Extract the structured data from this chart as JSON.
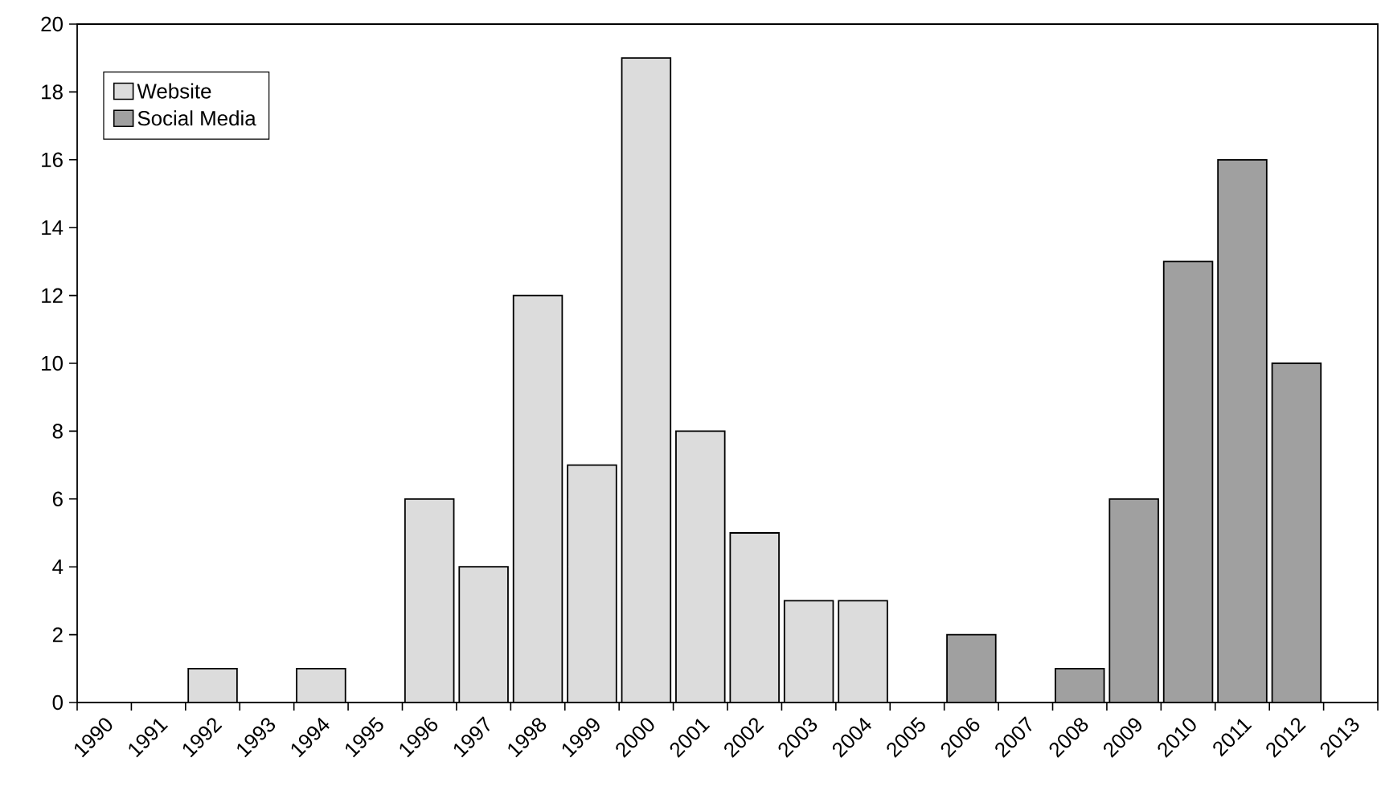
{
  "chart_data": {
    "type": "bar",
    "categories": [
      "1990",
      "1991",
      "1992",
      "1993",
      "1994",
      "1995",
      "1996",
      "1997",
      "1998",
      "1999",
      "2000",
      "2001",
      "2002",
      "2003",
      "2004",
      "2005",
      "2006",
      "2007",
      "2008",
      "2009",
      "2010",
      "2011",
      "2012",
      "2013"
    ],
    "series": [
      {
        "name": "Website",
        "color": "#dcdcdc",
        "values": [
          0,
          0,
          1,
          0,
          1,
          0,
          6,
          4,
          12,
          7,
          19,
          8,
          5,
          3,
          3,
          0,
          null,
          null,
          null,
          null,
          null,
          null,
          null,
          null
        ]
      },
      {
        "name": "Social Media",
        "color": "#a0a0a0",
        "values": [
          null,
          null,
          null,
          null,
          null,
          null,
          null,
          null,
          null,
          null,
          null,
          null,
          null,
          null,
          null,
          null,
          2,
          0,
          1,
          6,
          13,
          16,
          10,
          0
        ]
      }
    ],
    "ylim": [
      0,
      20
    ],
    "yticks": [
      0,
      2,
      4,
      6,
      8,
      10,
      12,
      14,
      16,
      18,
      20
    ],
    "legend": "top left"
  }
}
